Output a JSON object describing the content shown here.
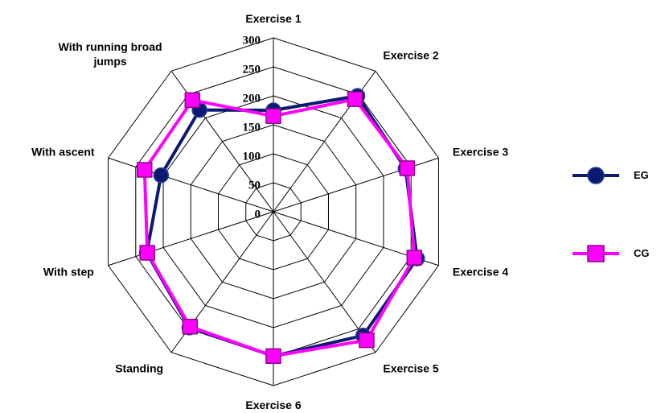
{
  "chart_data": {
    "type": "radar",
    "categories": [
      "Exercise 1",
      "Exercise 2",
      "Exercise 3",
      "Exercise 4",
      "Exercise 5",
      "Exercise 6",
      "Standing",
      "With step",
      "With ascent",
      "With running broad jumps"
    ],
    "series": [
      {
        "name": "EG",
        "color": "#0b1a70",
        "values": [
          175,
          247,
          240,
          261,
          264,
          249,
          247,
          230,
          204,
          217
        ]
      },
      {
        "name": "CG",
        "color": "#ff00ff",
        "values": [
          165,
          240,
          243,
          256,
          274,
          249,
          245,
          229,
          234,
          238
        ]
      }
    ],
    "ylim": [
      0,
      300
    ],
    "yticks": [
      0,
      50,
      100,
      150,
      200,
      250,
      300
    ],
    "grid": true,
    "legend": "right"
  }
}
